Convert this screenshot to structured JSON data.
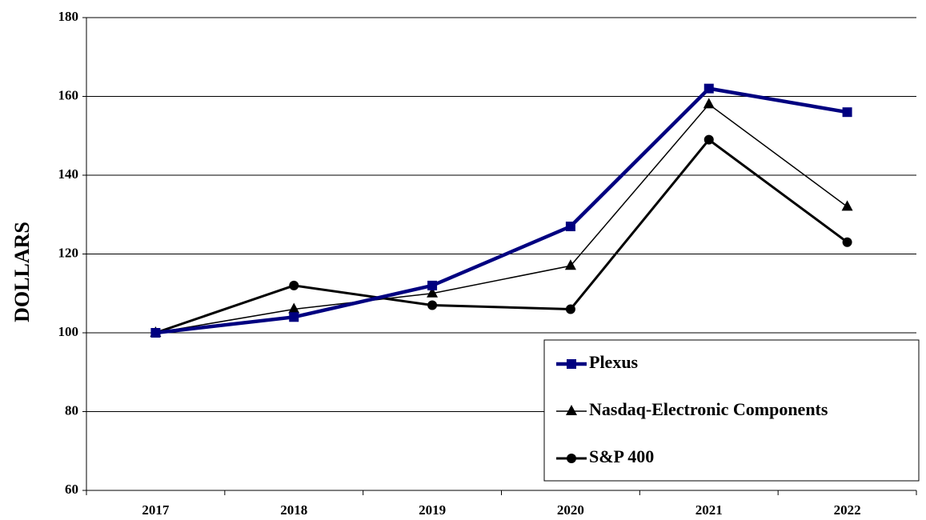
{
  "chart_data": {
    "type": "line",
    "y_label": "DOLLARS",
    "categories": [
      "2017",
      "2018",
      "2019",
      "2020",
      "2021",
      "2022"
    ],
    "series": [
      {
        "name": "Plexus",
        "color": "#000080",
        "marker": "square",
        "values": [
          100,
          104,
          112,
          127,
          162,
          156
        ]
      },
      {
        "name": "Nasdaq-Electronic Components",
        "color": "#000000",
        "marker": "triangle",
        "values": [
          100,
          106,
          110,
          117,
          158,
          132
        ]
      },
      {
        "name": "S&P 400",
        "color": "#000000",
        "marker": "circle",
        "values": [
          100,
          112,
          107,
          106,
          149,
          123
        ]
      }
    ],
    "ylim": [
      60,
      180
    ],
    "yticks": [
      60,
      80,
      100,
      120,
      140,
      160,
      180
    ],
    "grid": true
  }
}
